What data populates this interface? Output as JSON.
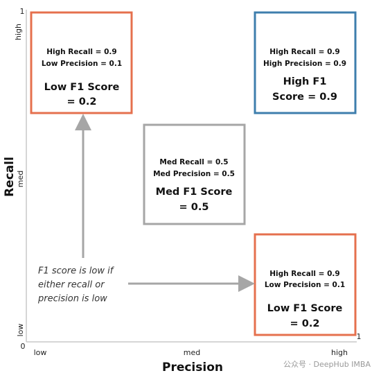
{
  "axes": {
    "y_title": "Recall",
    "x_title": "Precision",
    "y_labels": {
      "top": "1",
      "high": "high",
      "med": "med",
      "low": "low"
    },
    "origin": "0",
    "x_labels": {
      "low": "low",
      "med": "med",
      "high": "high",
      "end": "1"
    }
  },
  "boxes": [
    {
      "lines": [
        "High Recall = 0.9",
        "Low Precision = 0.1"
      ],
      "result": [
        "Low F1 Score",
        "= 0.2"
      ]
    },
    {
      "lines": [
        "High Recall = 0.9",
        "High Precision = 0.9"
      ],
      "result": [
        "High F1",
        "Score = 0.9"
      ]
    },
    {
      "lines": [
        "Med Recall = 0.5",
        "Med Precision = 0.5"
      ],
      "result": [
        "Med F1 Score",
        "= 0.5"
      ]
    },
    {
      "lines": [
        "High Recall = 0.9",
        "Low Precision = 0.1"
      ],
      "result": [
        "Low F1 Score",
        "= 0.2"
      ]
    }
  ],
  "note": [
    "F1 score is low if",
    "either recall or",
    "precision is low"
  ],
  "watermark": "公众号 · DeepHub IMBA"
}
